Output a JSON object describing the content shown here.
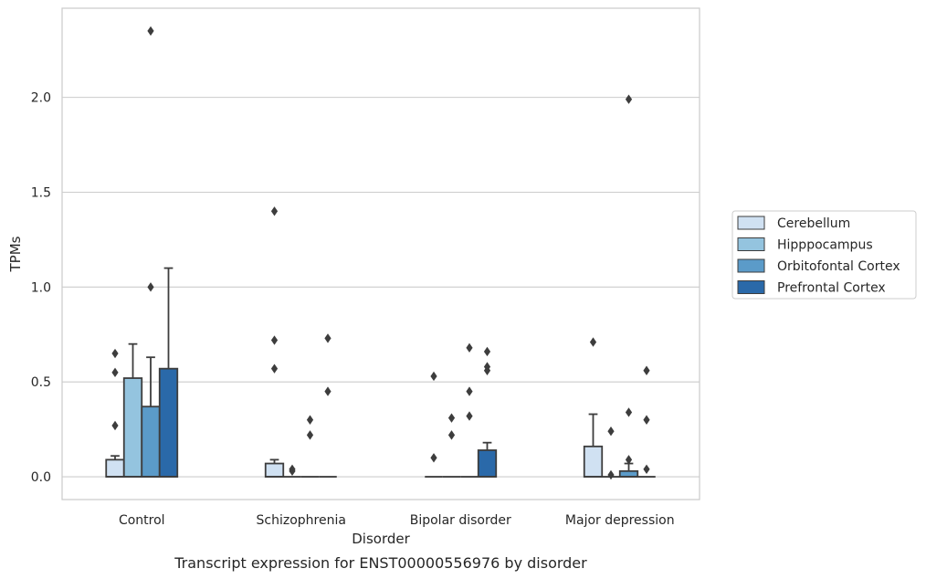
{
  "chart_data": {
    "type": "box",
    "caption": "Transcript expression for ENST00000556976 by disorder",
    "xlabel": "Disorder",
    "ylabel": "TPMs",
    "ylim": [
      -0.12,
      2.47
    ],
    "yticks": [
      "0.0",
      "0.5",
      "1.0",
      "1.5",
      "2.0"
    ],
    "ytick_values": [
      0.0,
      0.5,
      1.0,
      1.5,
      2.0
    ],
    "grid": true,
    "legend_position": "right",
    "categories": [
      "Control",
      "Schizophrenia",
      "Bipolar disorder",
      "Major depression"
    ],
    "series": [
      {
        "name": "Cerebellum",
        "color": "#d0e1f2",
        "boxes": [
          {
            "q1": 0.0,
            "median": 0.0,
            "q3": 0.09,
            "whisker_low": 0.0,
            "whisker_high": 0.11,
            "outliers": [
              0.65,
              0.55,
              0.27
            ]
          },
          {
            "q1": 0.0,
            "median": 0.0,
            "q3": 0.07,
            "whisker_low": 0.0,
            "whisker_high": 0.09,
            "outliers": [
              1.4,
              0.72,
              0.57
            ]
          },
          {
            "q1": 0.0,
            "median": 0.0,
            "q3": 0.0,
            "whisker_low": 0.0,
            "whisker_high": 0.0,
            "outliers": [
              0.53,
              0.1
            ]
          },
          {
            "q1": 0.0,
            "median": 0.0,
            "q3": 0.16,
            "whisker_low": 0.0,
            "whisker_high": 0.33,
            "outliers": [
              0.71
            ]
          }
        ]
      },
      {
        "name": "Hipppocampus",
        "color": "#94c4df",
        "boxes": [
          {
            "q1": 0.0,
            "median": 0.0,
            "q3": 0.52,
            "whisker_low": 0.0,
            "whisker_high": 0.7,
            "outliers": []
          },
          {
            "q1": 0.0,
            "median": 0.0,
            "q3": 0.0,
            "whisker_low": 0.0,
            "whisker_high": 0.0,
            "outliers": [
              0.04,
              0.03
            ]
          },
          {
            "q1": 0.0,
            "median": 0.0,
            "q3": 0.0,
            "whisker_low": 0.0,
            "whisker_high": 0.0,
            "outliers": [
              0.31,
              0.22
            ]
          },
          {
            "q1": 0.0,
            "median": 0.0,
            "q3": 0.0,
            "whisker_low": 0.0,
            "whisker_high": 0.0,
            "outliers": [
              0.24,
              0.01
            ]
          }
        ]
      },
      {
        "name": "Orbitofontal Cortex",
        "color": "#5b9bc9",
        "boxes": [
          {
            "q1": 0.0,
            "median": 0.0,
            "q3": 0.37,
            "whisker_low": 0.0,
            "whisker_high": 0.63,
            "outliers": [
              2.35,
              1.0
            ]
          },
          {
            "q1": 0.0,
            "median": 0.0,
            "q3": 0.0,
            "whisker_low": 0.0,
            "whisker_high": 0.0,
            "outliers": [
              0.3,
              0.22
            ]
          },
          {
            "q1": 0.0,
            "median": 0.0,
            "q3": 0.0,
            "whisker_low": 0.0,
            "whisker_high": 0.0,
            "outliers": [
              0.68,
              0.45,
              0.32
            ]
          },
          {
            "q1": 0.0,
            "median": 0.0,
            "q3": 0.03,
            "whisker_low": 0.0,
            "whisker_high": 0.07,
            "outliers": [
              1.99,
              0.34,
              0.09
            ]
          }
        ]
      },
      {
        "name": "Prefrontal Cortex",
        "color": "#2a69a9",
        "boxes": [
          {
            "q1": 0.0,
            "median": 0.0,
            "q3": 0.57,
            "whisker_low": 0.0,
            "whisker_high": 1.1,
            "outliers": []
          },
          {
            "q1": 0.0,
            "median": 0.0,
            "q3": 0.0,
            "whisker_low": 0.0,
            "whisker_high": 0.0,
            "outliers": [
              0.73,
              0.45
            ]
          },
          {
            "q1": 0.0,
            "median": 0.0,
            "q3": 0.14,
            "whisker_low": 0.0,
            "whisker_high": 0.18,
            "outliers": [
              0.66,
              0.58,
              0.56
            ]
          },
          {
            "q1": 0.0,
            "median": 0.0,
            "q3": 0.0,
            "whisker_low": 0.0,
            "whisker_high": 0.0,
            "outliers": [
              0.56,
              0.3,
              0.04
            ]
          }
        ]
      }
    ]
  }
}
